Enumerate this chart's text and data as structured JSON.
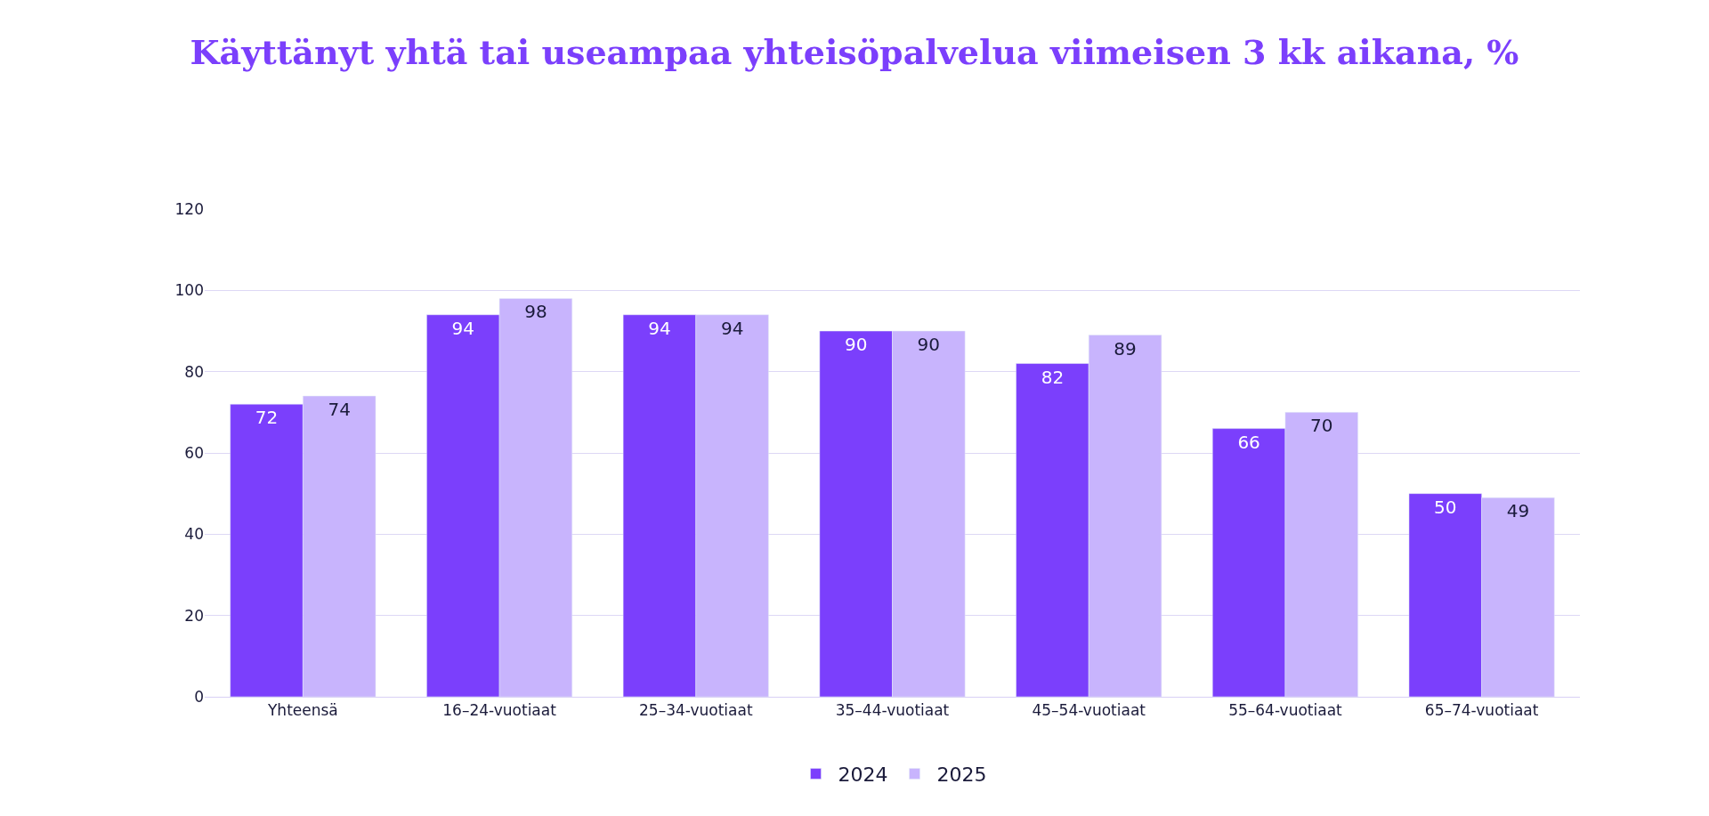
{
  "chart_data": {
    "type": "bar",
    "title": "Käyttänyt yhtä tai useampaa yhteisöpalvelua viimeisen 3 kk aikana, %",
    "categories": [
      "Yhteensä",
      "16–24-vuotiaat",
      "25–34-vuotiaat",
      "35–44-vuotiaat",
      "45–54-vuotiaat",
      "55–64-vuotiaat",
      "65–74-vuotiaat"
    ],
    "series": [
      {
        "name": "2024",
        "color": "#7b3ffc",
        "values": [
          72,
          94,
          94,
          90,
          82,
          66,
          50
        ]
      },
      {
        "name": "2025",
        "color": "#c8b4fd",
        "values": [
          74,
          98,
          94,
          90,
          89,
          70,
          49
        ]
      }
    ],
    "ylim": [
      0,
      120
    ],
    "yticks": [
      0,
      20,
      40,
      60,
      80,
      100,
      120
    ],
    "grid": "y",
    "legend": "bottom",
    "data_labels": true
  }
}
